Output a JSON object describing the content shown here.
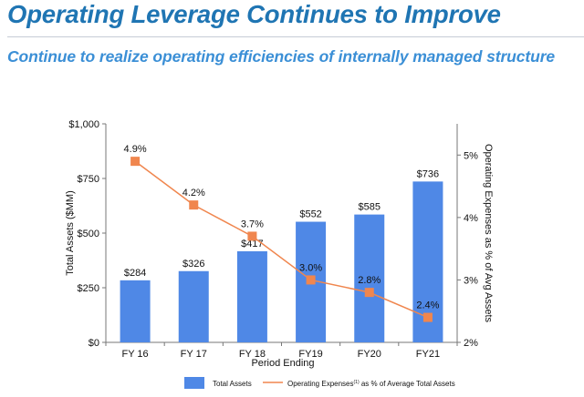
{
  "header": {
    "title": "Operating Leverage Continues to Improve",
    "subtitle": "Continue to realize operating efficiencies of internally managed structure"
  },
  "chart_data": {
    "type": "bar",
    "categories": [
      "FY 16",
      "FY 17",
      "FY 18",
      "FY19",
      "FY20",
      "FY21"
    ],
    "series": [
      {
        "name": "Total Assets",
        "type": "bar",
        "axis": "left",
        "values": [
          284,
          326,
          417,
          552,
          585,
          736
        ],
        "labels": [
          "$284",
          "$326",
          "$417",
          "$552",
          "$585",
          "$736"
        ],
        "color": "#4f88e6"
      },
      {
        "name": "Operating Expenses as % of Average Total Assets",
        "name_superscript": "(1)",
        "type": "line",
        "axis": "right",
        "values": [
          4.9,
          4.2,
          3.7,
          3.0,
          2.8,
          2.4
        ],
        "labels": [
          "4.9%",
          "4.2%",
          "3.7%",
          "3.0%",
          "2.8%",
          "2.4%"
        ],
        "color": "#f0864e"
      }
    ],
    "xlabel": "Period Ending",
    "ylabel": "Total Assets ($MM)",
    "y2label": "Operating Expenses as % of Avg Assets",
    "ylim": [
      0,
      1000
    ],
    "yticks": [
      0,
      250,
      500,
      750,
      1000
    ],
    "yticklabels": [
      "$0",
      "$250",
      "$500",
      "$750",
      "$1,000"
    ],
    "y2lim": [
      2,
      5.5
    ],
    "y2ticks": [
      2,
      3,
      4,
      5
    ],
    "y2ticklabels": [
      "2%",
      "3%",
      "4%",
      "5%"
    ],
    "grid": false,
    "legend_position": "bottom",
    "legend": {
      "bar_label": "Total Assets",
      "line_label_main": "Operating Expenses",
      "line_label_sup": "(1)",
      "line_label_rest": " as % of Average Total Assets"
    }
  }
}
